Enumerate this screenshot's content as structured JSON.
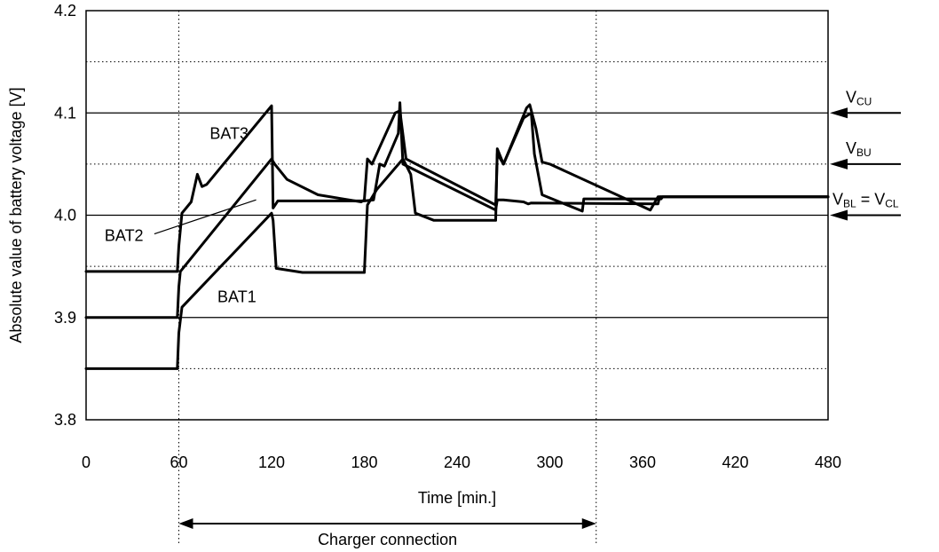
{
  "chart_data": {
    "type": "line",
    "title": "",
    "xlabel": "Time [min.]",
    "ylabel": "Absolute value of battery voltage [V]",
    "xlim": [
      0,
      480
    ],
    "ylim": [
      3.8,
      4.2
    ],
    "x_ticks": [
      "0",
      "60",
      "120",
      "180",
      "240",
      "300",
      "360",
      "420",
      "480"
    ],
    "y_ticks": [
      "3.8",
      "3.9",
      "4.0",
      "4.1",
      "4.2"
    ],
    "y_solid_gridlines": [
      3.9,
      4.0,
      4.1
    ],
    "y_dotted_gridlines": [
      3.85,
      3.95,
      4.05,
      4.15
    ],
    "x_dotted_vlines": [
      60,
      330
    ],
    "grid": true,
    "legend": "none",
    "series": [
      {
        "name": "BAT1",
        "x": [
          0,
          59,
          60,
          62,
          120,
          121,
          123,
          140,
          180,
          182,
          188,
          205,
          210,
          213,
          225,
          265,
          266,
          270,
          285,
          287,
          291,
          295,
          300,
          365,
          370,
          480
        ],
        "y": [
          3.85,
          3.85,
          3.885,
          3.91,
          4.002,
          3.995,
          3.948,
          3.944,
          3.944,
          4.01,
          4.025,
          4.055,
          4.04,
          4.002,
          3.995,
          3.995,
          4.065,
          4.05,
          4.105,
          4.108,
          4.085,
          4.052,
          4.05,
          4.005,
          4.018,
          4.018
        ]
      },
      {
        "name": "BAT2",
        "x": [
          0,
          59,
          60,
          61,
          120,
          122,
          130,
          150,
          178,
          180,
          182,
          185,
          200,
          203,
          207,
          265,
          266,
          270,
          283,
          288,
          290,
          295,
          321,
          322,
          372,
          373,
          480
        ],
        "y": [
          3.9,
          3.9,
          3.93,
          3.945,
          4.055,
          4.05,
          4.035,
          4.02,
          4.013,
          4.015,
          4.055,
          4.05,
          4.1,
          4.102,
          4.055,
          4.01,
          4.06,
          4.05,
          4.095,
          4.1,
          4.06,
          4.02,
          4.004,
          4.016,
          4.016,
          4.018,
          4.018
        ]
      },
      {
        "name": "BAT3",
        "x": [
          0,
          59,
          60,
          62,
          68,
          72,
          75,
          78,
          120,
          121,
          124,
          180,
          186,
          190,
          193,
          202,
          203,
          205,
          265,
          266,
          270,
          283,
          286,
          288,
          370,
          371,
          480
        ],
        "y": [
          3.945,
          3.945,
          3.97,
          4.002,
          4.013,
          4.04,
          4.028,
          4.03,
          4.107,
          4.007,
          4.014,
          4.014,
          4.015,
          4.05,
          4.048,
          4.08,
          4.11,
          4.05,
          4.005,
          4.015,
          4.015,
          4.013,
          4.011,
          4.012,
          4.011,
          4.018,
          4.018
        ]
      }
    ],
    "series_labels": [
      {
        "text": "BAT3",
        "x": 80,
        "y": 4.08
      },
      {
        "text": "BAT2",
        "x": 12,
        "y": 3.98
      },
      {
        "text": "BAT1",
        "x": 85,
        "y": 3.92
      }
    ],
    "annotations": [
      {
        "main": "V",
        "sub": "CU",
        "tail": "",
        "y": 4.1
      },
      {
        "main": "V",
        "sub": "BU",
        "tail": "",
        "y": 4.05
      },
      {
        "main": "V",
        "sub": "BL",
        "tail": " = V",
        "sub2": "CL",
        "y": 4.0
      }
    ],
    "charger_connection": {
      "label": "Charger connection",
      "from": 60,
      "to": 330
    }
  }
}
